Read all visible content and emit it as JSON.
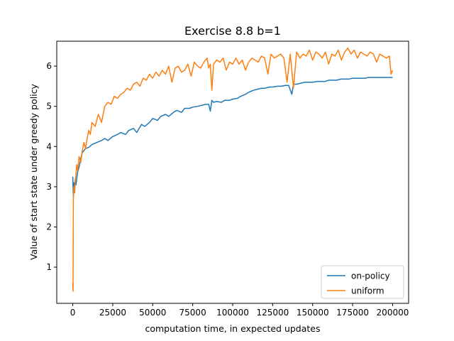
{
  "chart_data": {
    "type": "line",
    "title": "Exercise 8.8 b=1",
    "xlabel": "computation time, in expected updates",
    "ylabel": "Value of start state under greedy policy",
    "xlim": [
      -10000,
      210000
    ],
    "ylim": [
      0.1,
      6.62
    ],
    "xticks": [
      0,
      25000,
      50000,
      75000,
      100000,
      125000,
      150000,
      175000,
      200000
    ],
    "xtick_labels": [
      "0",
      "25000",
      "50000",
      "75000",
      "100000",
      "125000",
      "150000",
      "175000",
      "200000"
    ],
    "yticks": [
      1,
      2,
      3,
      4,
      5,
      6
    ],
    "ytick_labels": [
      "1",
      "2",
      "3",
      "4",
      "5",
      "6"
    ],
    "grid": false,
    "legend": {
      "position": "lower-right"
    },
    "series": [
      {
        "name": "on-policy",
        "color": "#1f77b4",
        "x": [
          0,
          400,
          800,
          1200,
          1600,
          2000,
          3000,
          4000,
          5000,
          6000,
          7000,
          8000,
          10000,
          12000,
          15000,
          18000,
          20000,
          22000,
          25000,
          28000,
          30000,
          33000,
          35000,
          38000,
          40000,
          43000,
          45000,
          48000,
          50000,
          53000,
          55000,
          58000,
          60000,
          63000,
          65000,
          68000,
          70000,
          73000,
          75000,
          78000,
          80000,
          83000,
          85000,
          86000,
          87000,
          88000,
          90000,
          93000,
          95000,
          98000,
          100000,
          103000,
          105000,
          108000,
          110000,
          113000,
          115000,
          118000,
          120000,
          123000,
          125000,
          128000,
          130000,
          133000,
          135000,
          137000,
          138000,
          140000,
          143000,
          145000,
          148000,
          150000,
          153000,
          155000,
          158000,
          160000,
          163000,
          165000,
          168000,
          170000,
          173000,
          175000,
          178000,
          180000,
          183000,
          185000,
          188000,
          190000,
          193000,
          195000,
          198000,
          200000
        ],
        "y": [
          3.25,
          2.75,
          3.1,
          2.85,
          3.2,
          3.05,
          3.35,
          3.5,
          3.7,
          3.85,
          3.9,
          3.95,
          3.98,
          4.05,
          4.1,
          4.15,
          4.2,
          4.15,
          4.25,
          4.3,
          4.35,
          4.3,
          4.4,
          4.45,
          4.35,
          4.55,
          4.5,
          4.6,
          4.7,
          4.65,
          4.75,
          4.8,
          4.75,
          4.85,
          4.9,
          4.85,
          4.95,
          4.95,
          4.98,
          5.0,
          5.02,
          5.05,
          5.05,
          4.88,
          5.15,
          5.1,
          5.12,
          5.1,
          5.15,
          5.15,
          5.18,
          5.2,
          5.25,
          5.3,
          5.35,
          5.4,
          5.42,
          5.45,
          5.45,
          5.48,
          5.48,
          5.5,
          5.5,
          5.52,
          5.52,
          5.3,
          5.55,
          5.55,
          5.58,
          5.6,
          5.6,
          5.6,
          5.62,
          5.62,
          5.62,
          5.65,
          5.65,
          5.65,
          5.68,
          5.68,
          5.68,
          5.7,
          5.7,
          5.7,
          5.7,
          5.72,
          5.72,
          5.72,
          5.72,
          5.72,
          5.72,
          5.72
        ]
      },
      {
        "name": "uniform",
        "color": "#ff7f0e",
        "x": [
          0,
          200,
          400,
          700,
          1000,
          1500,
          2000,
          2500,
          3000,
          4000,
          5000,
          6000,
          7000,
          8000,
          9000,
          10000,
          11000,
          12000,
          14000,
          16000,
          18000,
          20000,
          22000,
          24000,
          26000,
          28000,
          30000,
          32000,
          34000,
          36000,
          38000,
          40000,
          42000,
          44000,
          46000,
          48000,
          50000,
          52000,
          54000,
          56000,
          58000,
          60000,
          62000,
          64000,
          66000,
          68000,
          70000,
          72000,
          74000,
          76000,
          78000,
          80000,
          82000,
          84000,
          85000,
          86000,
          87000,
          88000,
          90000,
          92000,
          94000,
          96000,
          98000,
          100000,
          102000,
          104000,
          106000,
          108000,
          110000,
          112000,
          114000,
          116000,
          118000,
          120000,
          122000,
          124000,
          126000,
          128000,
          130000,
          132000,
          134000,
          136000,
          138000,
          140000,
          142000,
          144000,
          146000,
          148000,
          150000,
          152000,
          154000,
          156000,
          158000,
          160000,
          162000,
          164000,
          166000,
          168000,
          170000,
          172000,
          174000,
          176000,
          178000,
          180000,
          182000,
          184000,
          186000,
          188000,
          190000,
          192000,
          194000,
          196000,
          198000,
          199000,
          200000
        ],
        "y": [
          0.6,
          0.4,
          2.7,
          3.0,
          2.85,
          3.1,
          3.3,
          3.55,
          3.4,
          3.75,
          3.6,
          3.9,
          4.1,
          3.95,
          4.2,
          4.4,
          4.3,
          4.6,
          4.5,
          4.8,
          4.6,
          5.0,
          5.1,
          5.05,
          5.25,
          5.2,
          5.3,
          5.35,
          5.45,
          5.4,
          5.55,
          5.6,
          5.5,
          5.7,
          5.65,
          5.8,
          5.7,
          5.85,
          5.75,
          5.9,
          5.8,
          6.0,
          5.6,
          5.95,
          6.0,
          5.85,
          5.9,
          6.05,
          5.75,
          6.1,
          6.0,
          5.95,
          6.1,
          6.2,
          5.95,
          6.05,
          5.4,
          6.05,
          6.15,
          6.1,
          6.2,
          5.9,
          6.1,
          6.05,
          6.2,
          6.05,
          6.15,
          5.9,
          6.1,
          6.2,
          6.15,
          6.1,
          6.25,
          6.2,
          5.8,
          6.3,
          6.2,
          6.25,
          6.3,
          6.2,
          5.6,
          6.3,
          5.45,
          6.35,
          6.2,
          6.3,
          6.25,
          6.4,
          6.15,
          6.35,
          6.3,
          6.2,
          6.35,
          6.05,
          6.3,
          6.25,
          6.4,
          6.15,
          6.35,
          6.45,
          6.3,
          6.4,
          6.2,
          6.35,
          6.3,
          6.25,
          6.35,
          6.3,
          6.1,
          6.3,
          6.25,
          6.2,
          6.25,
          5.8,
          5.9
        ]
      }
    ]
  }
}
